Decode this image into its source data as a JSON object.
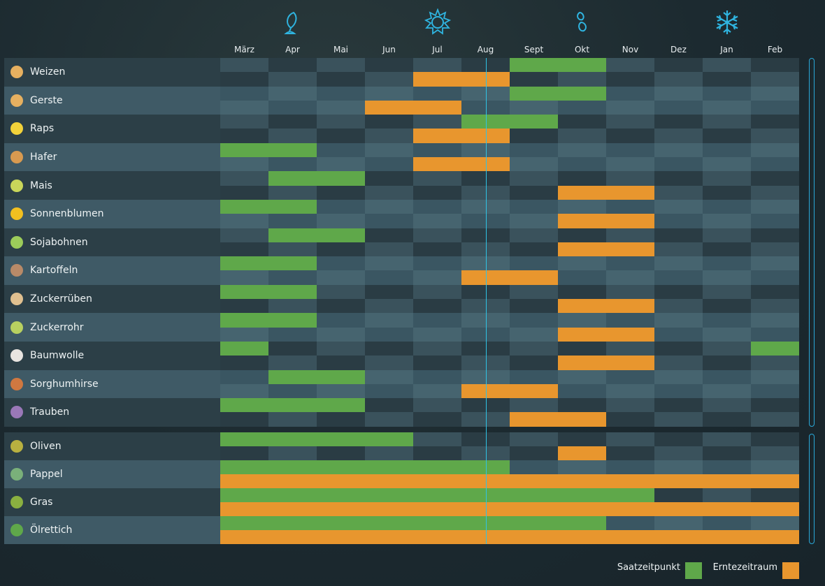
{
  "seasons": [
    {
      "name": "spring",
      "icon": "leaf-icon"
    },
    {
      "name": "summer",
      "icon": "sun-icon"
    },
    {
      "name": "autumn",
      "icon": "autumn-leaves-icon"
    },
    {
      "name": "winter",
      "icon": "snowflake-icon"
    }
  ],
  "months": [
    "März",
    "Apr",
    "Mai",
    "Jun",
    "Jul",
    "Aug",
    "Sept",
    "Okt",
    "Nov",
    "Dez",
    "Jan",
    "Feb"
  ],
  "current_month_index": 5,
  "colors": {
    "sow": "#5fa84a",
    "harvest": "#e8962e",
    "accent": "#2fc4e6"
  },
  "crops": [
    {
      "name": "Weizen",
      "icon": "wheat-icon",
      "color": "#e6b060",
      "sow": [
        6,
        7
      ],
      "harvest": [
        4,
        5
      ]
    },
    {
      "name": "Gerste",
      "icon": "barley-icon",
      "color": "#e6b060",
      "sow": [
        6,
        7
      ],
      "harvest": [
        3,
        4
      ]
    },
    {
      "name": "Raps",
      "icon": "canola-icon",
      "color": "#f2d23a",
      "sow": [
        5,
        6
      ],
      "harvest": [
        4,
        5
      ]
    },
    {
      "name": "Hafer",
      "icon": "oat-icon",
      "color": "#d89a50",
      "sow": [
        0,
        1
      ],
      "harvest": [
        4,
        5
      ]
    },
    {
      "name": "Mais",
      "icon": "corn-icon",
      "color": "#c9d65a",
      "sow": [
        1,
        2
      ],
      "harvest": [
        7,
        8
      ]
    },
    {
      "name": "Sonnenblumen",
      "icon": "sunflower-icon",
      "color": "#f2c020",
      "sow": [
        0,
        1
      ],
      "harvest": [
        7,
        8
      ]
    },
    {
      "name": "Sojabohnen",
      "icon": "soybean-icon",
      "color": "#9ccc5a",
      "sow": [
        1,
        2
      ],
      "harvest": [
        7,
        8
      ]
    },
    {
      "name": "Kartoffeln",
      "icon": "potato-icon",
      "color": "#b88a68",
      "sow": [
        0,
        1
      ],
      "harvest": [
        5,
        6
      ]
    },
    {
      "name": "Zuckerrüben",
      "icon": "sugarbeet-icon",
      "color": "#e0c090",
      "sow": [
        0,
        1
      ],
      "harvest": [
        7,
        8
      ]
    },
    {
      "name": "Zuckerrohr",
      "icon": "sugarcane-icon",
      "color": "#b8d060",
      "sow": [
        0,
        1
      ],
      "harvest": [
        7,
        8
      ]
    },
    {
      "name": "Baumwolle",
      "icon": "cotton-icon",
      "color": "#e8e4e0",
      "sow": [
        0,
        11
      ],
      "harvest": [
        7,
        8
      ]
    },
    {
      "name": "Sorghumhirse",
      "icon": "sorghum-icon",
      "color": "#d07840",
      "sow": [
        1,
        2
      ],
      "harvest": [
        5,
        6
      ]
    },
    {
      "name": "Trauben",
      "icon": "grapes-icon",
      "color": "#9a78b8",
      "sow": [
        0,
        1,
        2
      ],
      "harvest": [
        6,
        7
      ]
    }
  ],
  "perennials": [
    {
      "name": "Oliven",
      "icon": "olive-icon",
      "color": "#b8b040",
      "sow": [
        0,
        1,
        2,
        3
      ],
      "harvest": [
        7
      ]
    },
    {
      "name": "Pappel",
      "icon": "poplar-icon",
      "color": "#7ab07a",
      "sow": [
        0,
        1,
        2,
        3,
        4,
        5
      ],
      "harvest": [
        0,
        1,
        2,
        3,
        4,
        5,
        6,
        7,
        8,
        9,
        10,
        11
      ]
    },
    {
      "name": "Gras",
      "icon": "grass-icon",
      "color": "#8ab040",
      "sow": [
        0,
        1,
        2,
        3,
        4,
        5,
        6,
        7,
        8
      ],
      "harvest": [
        0,
        1,
        2,
        3,
        4,
        5,
        6,
        7,
        8,
        9,
        10,
        11
      ]
    },
    {
      "name": "Ölrettich",
      "icon": "oilradish-icon",
      "color": "#5fa84a",
      "sow": [
        0,
        1,
        2,
        3,
        4,
        5,
        6,
        7
      ],
      "harvest": [
        0,
        1,
        2,
        3,
        4,
        5,
        6,
        7,
        8,
        9,
        10,
        11
      ]
    }
  ],
  "legend": {
    "sow_label": "Saatzeitpunkt",
    "harvest_label": "Erntezeitraum"
  }
}
